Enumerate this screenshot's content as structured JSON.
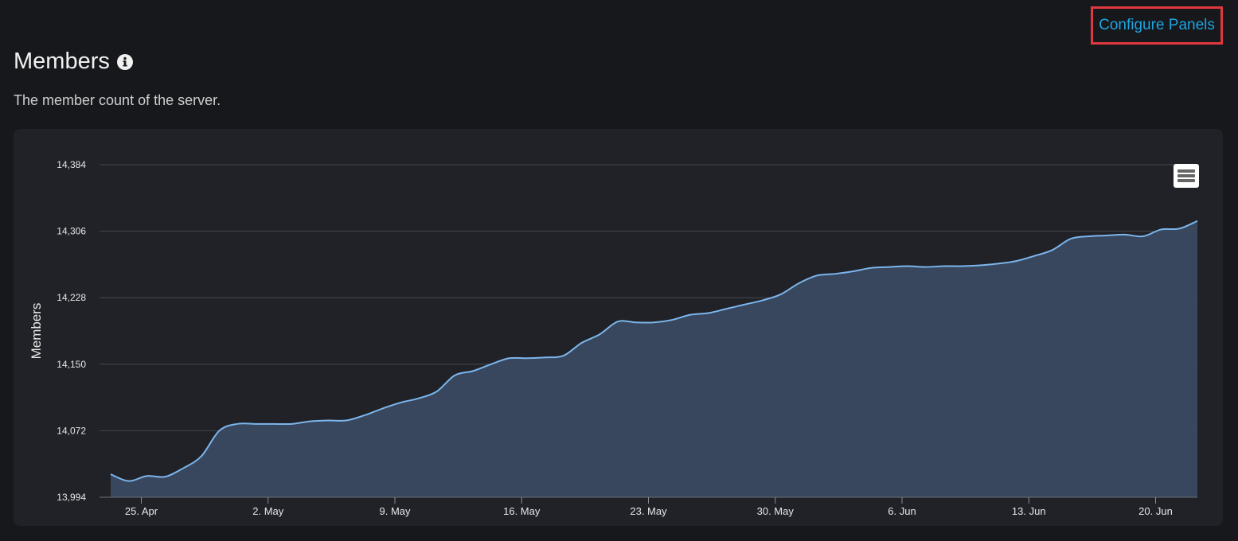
{
  "toolbar": {
    "configure_label": "Configure Panels"
  },
  "panel": {
    "title": "Members",
    "subtitle": "The member count of the server.",
    "info_icon": "info-icon",
    "menu_icon": "hamburger-menu-icon"
  },
  "colors": {
    "accent_link": "#1fa3e0",
    "highlight_border": "#e0383f",
    "line": "#7cb5ec",
    "area": "#3a4a60"
  },
  "chart_data": {
    "type": "area",
    "title": "",
    "xlabel": "",
    "ylabel": "Members",
    "ylim": [
      13994,
      14384
    ],
    "yticks": [
      "13,994",
      "14,072",
      "14,150",
      "14,228",
      "14,306",
      "14,384"
    ],
    "yticks_values": [
      13994,
      14072,
      14150,
      14228,
      14306,
      14384
    ],
    "xticks": [
      "25. Apr",
      "2. May",
      "9. May",
      "16. May",
      "23. May",
      "30. May",
      "6. Jun",
      "13. Jun",
      "20. Jun"
    ],
    "grid": true,
    "legend": "none",
    "series": [
      {
        "x": [
          "2021-04-23",
          "2021-04-24",
          "2021-04-25",
          "2021-04-26",
          "2021-04-27",
          "2021-04-28",
          "2021-04-29",
          "2021-04-30",
          "2021-05-01",
          "2021-05-02",
          "2021-05-03",
          "2021-05-04",
          "2021-05-05",
          "2021-05-06",
          "2021-05-07",
          "2021-05-08",
          "2021-05-09",
          "2021-05-10",
          "2021-05-11",
          "2021-05-12",
          "2021-05-13",
          "2021-05-14",
          "2021-05-15",
          "2021-05-16",
          "2021-05-17",
          "2021-05-18",
          "2021-05-19",
          "2021-05-20",
          "2021-05-21",
          "2021-05-22",
          "2021-05-23",
          "2021-05-24",
          "2021-05-25",
          "2021-05-26",
          "2021-05-27",
          "2021-05-28",
          "2021-05-29",
          "2021-05-30",
          "2021-05-31",
          "2021-06-01",
          "2021-06-02",
          "2021-06-03",
          "2021-06-04",
          "2021-06-05",
          "2021-06-06",
          "2021-06-07",
          "2021-06-08",
          "2021-06-09",
          "2021-06-10",
          "2021-06-11",
          "2021-06-12",
          "2021-06-13",
          "2021-06-14",
          "2021-06-15",
          "2021-06-16",
          "2021-06-17",
          "2021-06-18",
          "2021-06-19",
          "2021-06-20",
          "2021-06-21",
          "2021-06-22"
        ],
        "values": [
          14021,
          14013,
          14019,
          14018,
          14028,
          14042,
          14072,
          14080,
          14080,
          14080,
          14080,
          14083,
          14084,
          14084,
          14090,
          14098,
          14105,
          14110,
          14118,
          14137,
          14142,
          14150,
          14157,
          14157,
          14158,
          14160,
          14175,
          14185,
          14200,
          14199,
          14199,
          14202,
          14208,
          14210,
          14215,
          14220,
          14225,
          14232,
          14245,
          14254,
          14256,
          14259,
          14263,
          14264,
          14265,
          14264,
          14265,
          14265,
          14266,
          14268,
          14271,
          14277,
          14284,
          14297,
          14300,
          14301,
          14302,
          14300,
          14308,
          14309,
          14318
        ]
      }
    ]
  }
}
